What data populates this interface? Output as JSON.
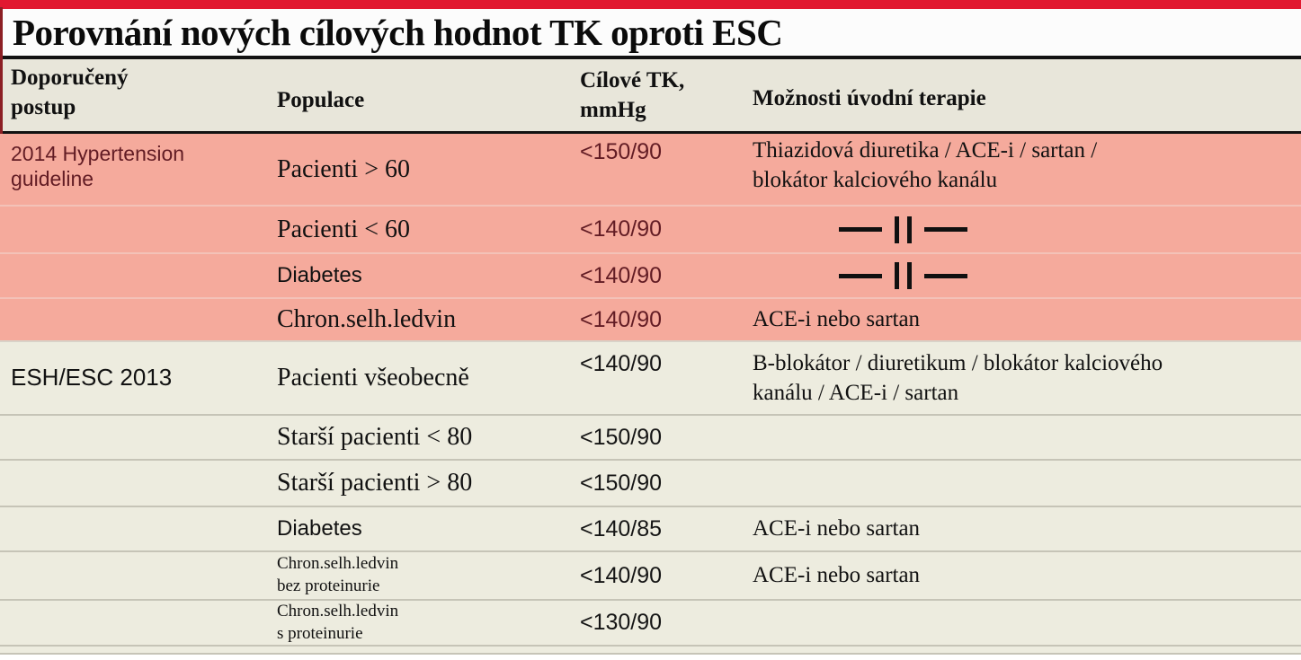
{
  "title": "Porovnání nových cílových hodnot TK oproti ESC",
  "colors": {
    "top_bar_red": "#e11830",
    "left_border_maroon": "#8c1f24",
    "pink_row_background": "#f5aa9c",
    "pink_section_text": "#621c24",
    "header_background": "#e8e6da",
    "beige_row_background": "#edecdf",
    "rule_black": "#121212"
  },
  "table": {
    "columns": [
      "Doporučený postup",
      "Populace",
      "Cílové TK,\nmmHg",
      "Možnosti úvodní terapie"
    ],
    "ditto_glyph": "—||—",
    "rows": [
      {
        "section": "pink",
        "guideline": "2014 Hypertension\nguideline",
        "population": "Pacienti > 60",
        "population_style": "",
        "tk": "<150/90",
        "therapy": "Thiazidová diuretika / ACE-i / sartan /\nblokátor kalciového kanálu",
        "ditto": false
      },
      {
        "section": "pink",
        "guideline": "",
        "population": "Pacienti < 60",
        "population_style": "",
        "tk": "<140/90",
        "therapy": "—||—",
        "ditto": true
      },
      {
        "section": "pink",
        "guideline": "",
        "population": "Diabetes",
        "population_style": "sans",
        "tk": "<140/90",
        "therapy": "—||—",
        "ditto": true
      },
      {
        "section": "pink",
        "guideline": "",
        "population": "Chron.selh.ledvin",
        "population_style": "",
        "tk": "<140/90",
        "therapy": "ACE-i nebo sartan",
        "ditto": false
      },
      {
        "section": "beige",
        "guideline": "ESH/ESC 2013",
        "population": "Pacienti všeobecně",
        "population_style": "",
        "tk": "<140/90",
        "therapy": "B-blokátor / diuretikum / blokátor kalciového\nkanálu / ACE-i / sartan",
        "ditto": false
      },
      {
        "section": "beige",
        "guideline": "",
        "population": "Starší pacienti < 80",
        "population_style": "",
        "tk": "<150/90",
        "therapy": "",
        "ditto": false
      },
      {
        "section": "beige",
        "guideline": "",
        "population": "Starší pacienti > 80",
        "population_style": "",
        "tk": "<150/90",
        "therapy": "",
        "ditto": false
      },
      {
        "section": "beige",
        "guideline": "",
        "population": "Diabetes",
        "population_style": "sans",
        "tk": "<140/85",
        "therapy": "ACE-i nebo sartan",
        "ditto": false
      },
      {
        "section": "beige",
        "guideline": "",
        "population": "Chron.selh.ledvin\nbez proteinurie",
        "population_style": "small",
        "tk": "<140/90",
        "therapy": "ACE-i nebo sartan",
        "ditto": false
      },
      {
        "section": "beige",
        "guideline": "",
        "population": "Chron.selh.ledvin\ns proteinurie",
        "population_style": "small",
        "tk": "<130/90",
        "therapy": "",
        "ditto": false
      }
    ]
  }
}
